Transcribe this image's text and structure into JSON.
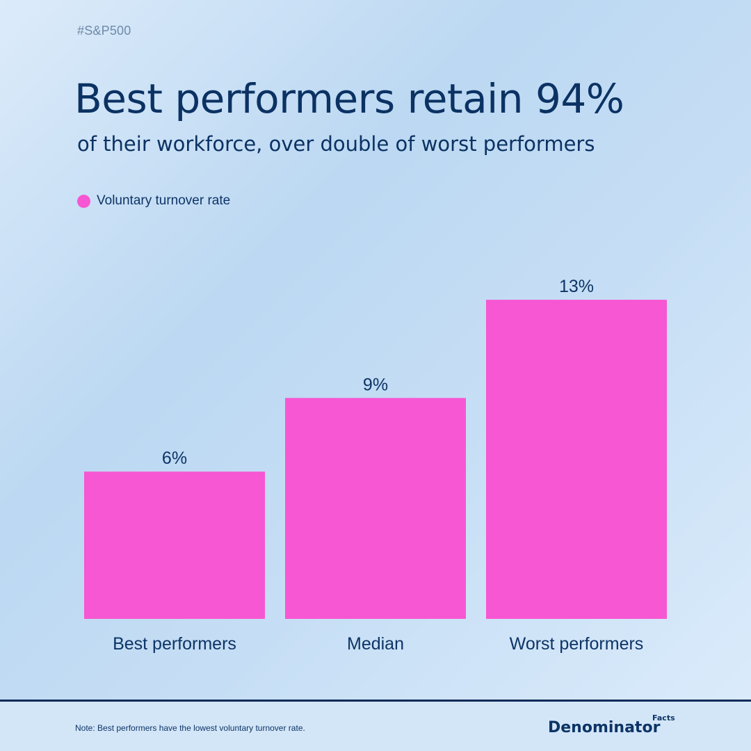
{
  "header": {
    "hashtag": "#S&P500",
    "title": "Best performers retain 94%",
    "subtitle": "of their workforce, over double of worst performers"
  },
  "legend": {
    "label": "Voluntary turnover rate"
  },
  "chart_data": {
    "type": "bar",
    "categories": [
      "Best performers",
      "Median",
      "Worst performers"
    ],
    "series": [
      {
        "name": "Voluntary turnover rate",
        "values": [
          6,
          9,
          13
        ]
      }
    ],
    "data_labels": [
      "6%",
      "9%",
      "13%"
    ],
    "ylim": [
      0,
      15
    ],
    "grid": false,
    "legend_placement": "top-left",
    "colors": {
      "bar": "#f757d2",
      "text": "#0d3466"
    }
  },
  "footer": {
    "note": "Note: Best performers have the lowest voluntary turnover rate.",
    "brand": "Denominator",
    "brand_sub": "Facts"
  }
}
